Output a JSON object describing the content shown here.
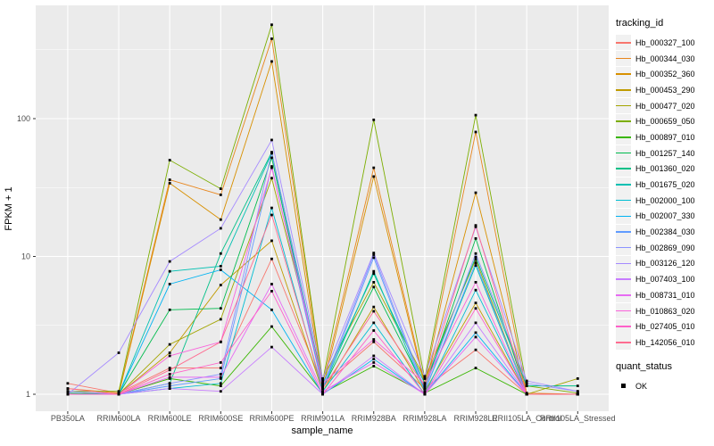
{
  "axes": {
    "y_title": "FPKM + 1",
    "x_title": "sample_name"
  },
  "legend": {
    "tracking_title": "tracking_id",
    "quant_title": "quant_status",
    "quant_ok_label": "OK"
  },
  "colors": {
    "panel_background": "#EBEBEB",
    "gridline": "#FFFFFF",
    "tick_label": "#4D4D4D",
    "tick_mark": "#333333",
    "marker": "#000000"
  },
  "chart_data": {
    "type": "line",
    "title": "",
    "xlabel": "sample_name",
    "ylabel": "FPKM + 1",
    "x_scale": "categorical",
    "y_scale": "log10",
    "ylim": [
      0.75,
      660
    ],
    "yticks": [
      1,
      10,
      100
    ],
    "grid": true,
    "legend_position": "right",
    "point_marker": "black square (quant_status = OK for all points)",
    "categories": [
      "PB350LA",
      "RRIM600LA",
      "RRIM600LE",
      "RRIM600SE",
      "RRIM600PE",
      "RRIM901LA",
      "RRIM928BA",
      "RRIM928LA",
      "RRIM928LE",
      "RRII105LA_Control",
      "RRII105LA_Stressed"
    ],
    "series": [
      {
        "name": "Hb_000327_100",
        "color": "#F8766D",
        "values": [
          1.2,
          1.02,
          1.55,
          1.55,
          9.6,
          1.15,
          2.4,
          1.1,
          2.1,
          1.0,
          1.0
        ]
      },
      {
        "name": "Hb_000344_030",
        "color": "#E8861D",
        "values": [
          1.1,
          1.02,
          36,
          28,
          380,
          1.2,
          44,
          1.2,
          80,
          1.02,
          1.0
        ]
      },
      {
        "name": "Hb_000352_360",
        "color": "#D89000",
        "values": [
          1.05,
          1.0,
          34,
          18.5,
          260,
          1.1,
          38,
          1.15,
          29,
          1.0,
          1.0
        ]
      },
      {
        "name": "Hb_000453_290",
        "color": "#C09B00",
        "values": [
          1.02,
          1.0,
          2.0,
          6.2,
          13,
          1.05,
          4.3,
          1.05,
          4.6,
          1.0,
          1.0
        ]
      },
      {
        "name": "Hb_000477_020",
        "color": "#A3A500",
        "values": [
          1.0,
          1.0,
          2.3,
          3.5,
          37,
          1.3,
          6.5,
          1.3,
          9.5,
          1.0,
          1.3
        ]
      },
      {
        "name": "Hb_000659_050",
        "color": "#7CAE00",
        "values": [
          1.05,
          1.05,
          50,
          31,
          480,
          1.25,
          98,
          1.3,
          106,
          1.15,
          1.02
        ]
      },
      {
        "name": "Hb_000897_010",
        "color": "#39B600",
        "values": [
          1.0,
          1.0,
          1.3,
          1.15,
          3.1,
          1.02,
          1.6,
          1.02,
          1.55,
          1.0,
          1.0
        ]
      },
      {
        "name": "Hb_001257_140",
        "color": "#00BB4E",
        "values": [
          1.0,
          1.0,
          4.1,
          4.2,
          52,
          1.1,
          6.0,
          1.1,
          13.5,
          1.0,
          1.0
        ]
      },
      {
        "name": "Hb_001360_020",
        "color": "#00C087",
        "values": [
          1.02,
          1.0,
          1.2,
          10.5,
          57,
          1.2,
          7.5,
          1.2,
          9.9,
          1.15,
          1.15
        ]
      },
      {
        "name": "Hb_001675_020",
        "color": "#00C0B2",
        "values": [
          1.0,
          1.0,
          7.8,
          8.5,
          56,
          1.1,
          7.8,
          1.05,
          8.6,
          1.0,
          1.0
        ]
      },
      {
        "name": "Hb_002000_100",
        "color": "#00BDD2",
        "values": [
          1.0,
          1.0,
          1.1,
          1.2,
          22.5,
          1.05,
          3.3,
          1.0,
          5.7,
          1.0,
          1.0
        ]
      },
      {
        "name": "Hb_002007_330",
        "color": "#00B3F2",
        "values": [
          1.0,
          1.0,
          6.3,
          8.0,
          4.1,
          1.0,
          1.8,
          1.0,
          2.8,
          1.0,
          1.0
        ]
      },
      {
        "name": "Hb_002384_030",
        "color": "#619CFF",
        "values": [
          1.0,
          1.0,
          1.15,
          1.3,
          45,
          1.1,
          9.8,
          1.05,
          9.0,
          1.0,
          1.0
        ]
      },
      {
        "name": "Hb_002869_090",
        "color": "#8B93FF",
        "values": [
          1.05,
          1.0,
          1.2,
          1.4,
          57,
          1.15,
          10.3,
          1.1,
          10.5,
          1.2,
          1.05
        ]
      },
      {
        "name": "Hb_003126_120",
        "color": "#A58AFF",
        "values": [
          1.0,
          2.0,
          9.2,
          16,
          70,
          1.3,
          10.6,
          1.35,
          16.4,
          1.25,
          1.05
        ]
      },
      {
        "name": "Hb_007403_100",
        "color": "#C77CFF",
        "values": [
          1.0,
          1.0,
          1.1,
          1.05,
          2.2,
          1.0,
          1.9,
          1.0,
          3.3,
          1.0,
          1.0
        ]
      },
      {
        "name": "Hb_008731_010",
        "color": "#E76BF3",
        "values": [
          1.0,
          1.0,
          1.33,
          1.33,
          6.3,
          1.05,
          1.7,
          1.0,
          2.6,
          1.0,
          1.0
        ]
      },
      {
        "name": "Hb_010863_020",
        "color": "#FA62DB",
        "values": [
          1.0,
          1.0,
          1.9,
          2.4,
          44,
          1.2,
          2.5,
          1.2,
          6.5,
          1.0,
          1.0
        ]
      },
      {
        "name": "Hb_027405_010",
        "color": "#FF61C9",
        "values": [
          1.0,
          1.0,
          1.4,
          1.7,
          5.6,
          1.0,
          2.9,
          1.0,
          4.2,
          1.0,
          1.0
        ]
      },
      {
        "name": "Hb_142056_010",
        "color": "#FF6C91",
        "values": [
          1.1,
          1.0,
          1.5,
          2.4,
          20,
          1.1,
          4.0,
          1.15,
          16.8,
          1.0,
          1.0
        ]
      }
    ]
  }
}
